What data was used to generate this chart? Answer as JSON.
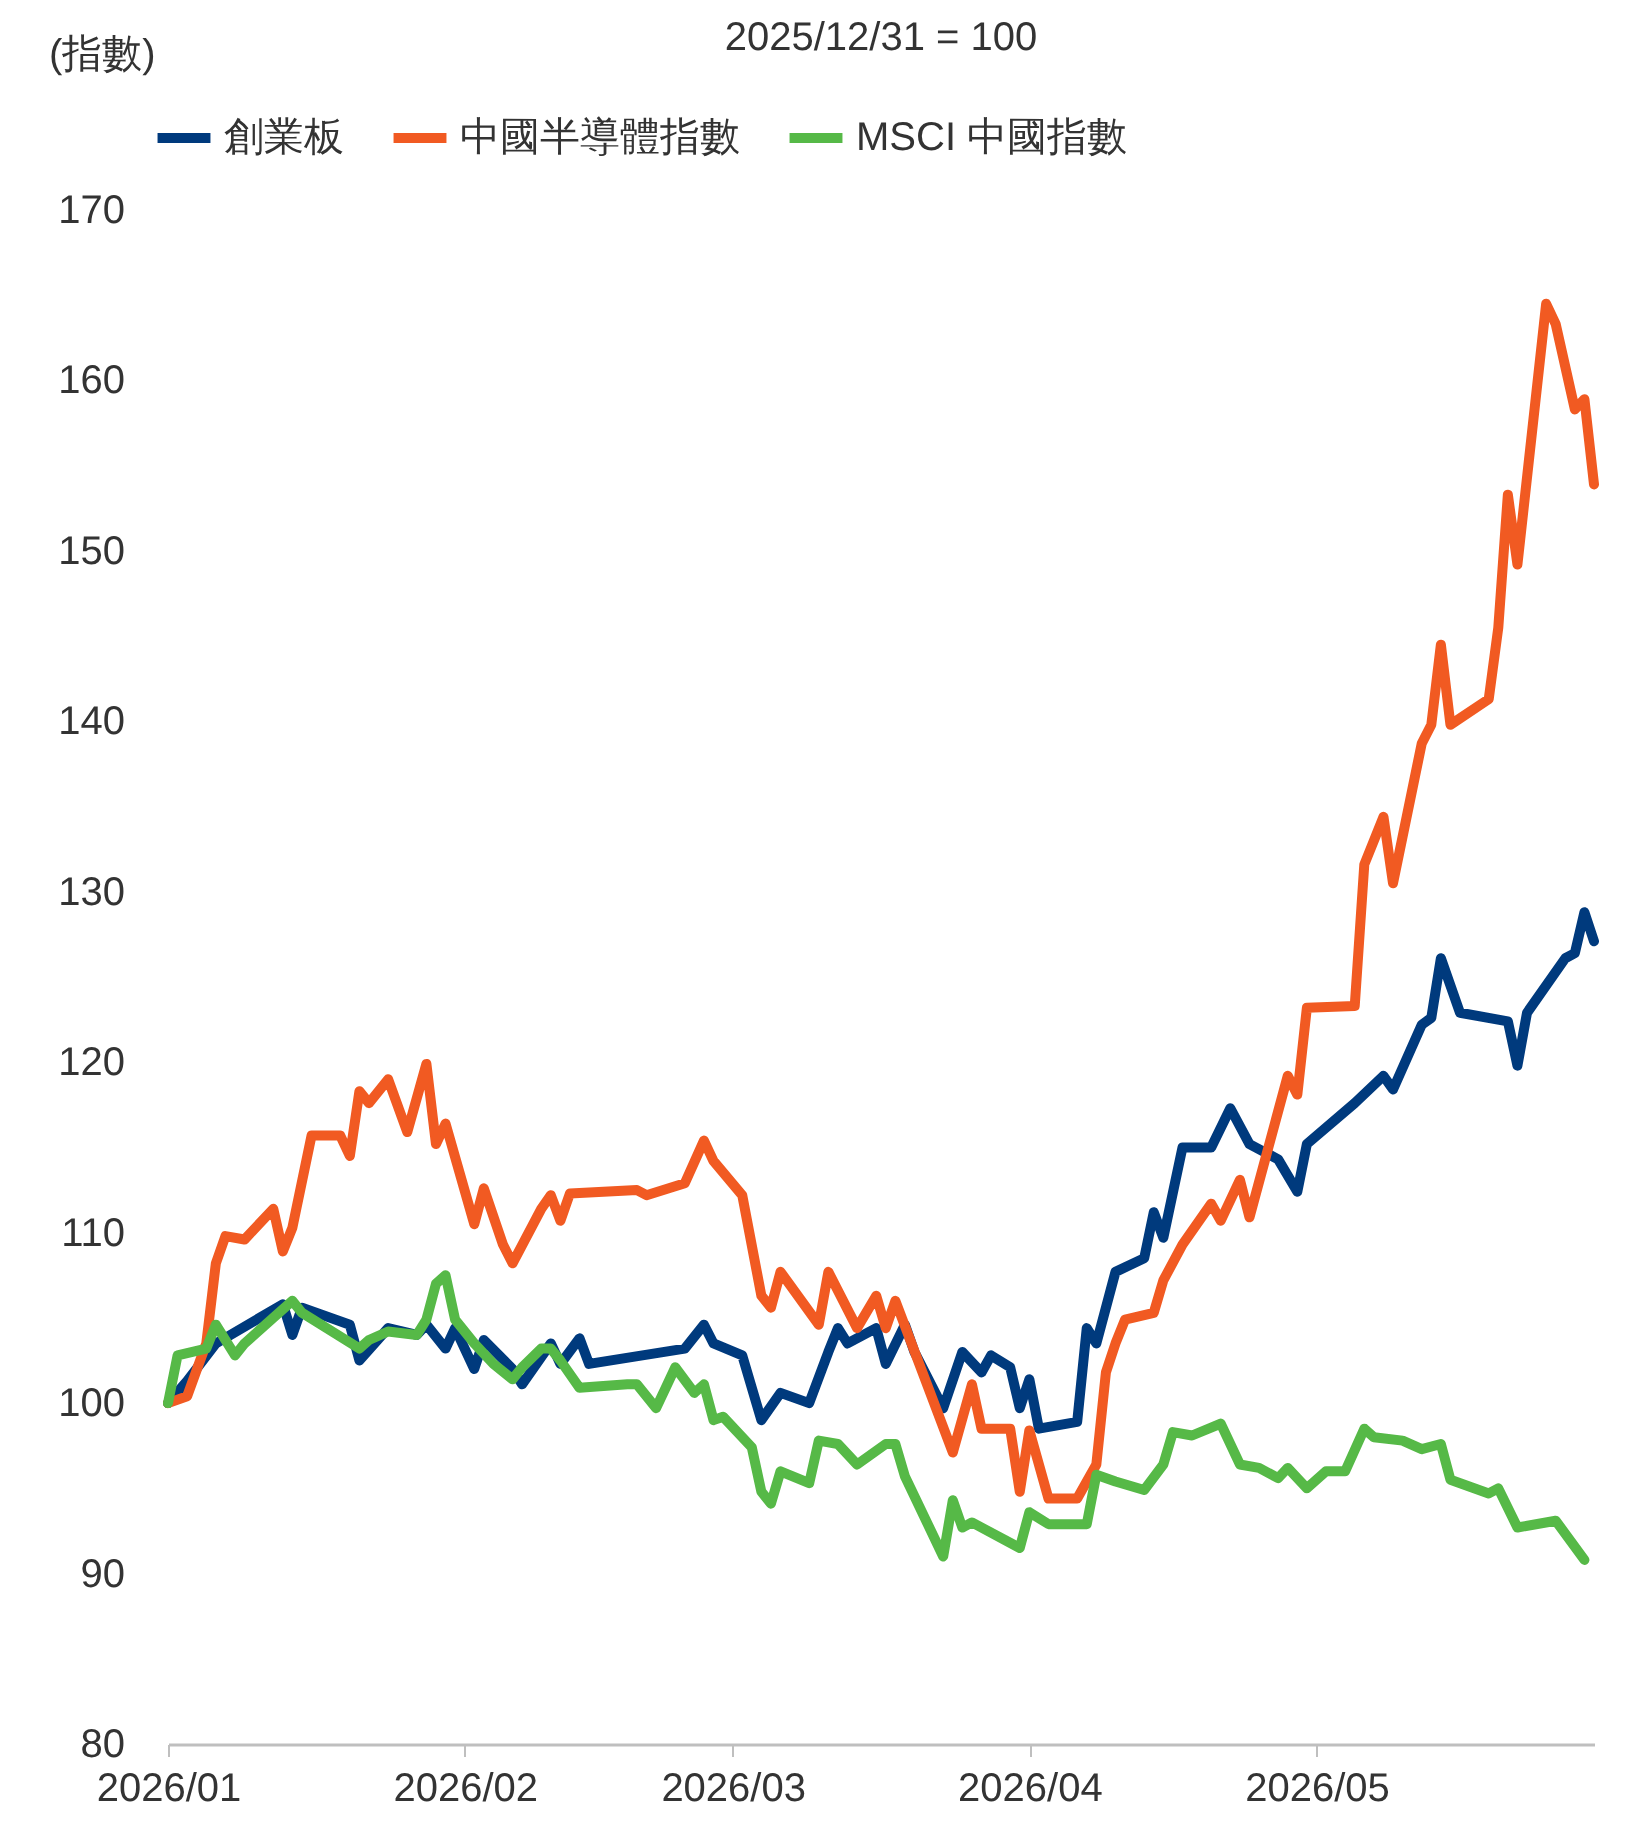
{
  "chart_data": {
    "type": "line",
    "title": "2025/12/31 = 100",
    "ylabel": "(指數)",
    "legend": "top",
    "grid": false,
    "marker": "none",
    "line_style": "solid",
    "xlim": [
      "2026-01-01",
      "2026-05-30"
    ],
    "xticks": [
      {
        "value": "2026-01-01",
        "label": "2026/01"
      },
      {
        "value": "2026-02-01",
        "label": "2026/02"
      },
      {
        "value": "2026-03-01",
        "label": "2026/03"
      },
      {
        "value": "2026-04-01",
        "label": "2026/04"
      },
      {
        "value": "2026-05-01",
        "label": "2026/05"
      }
    ],
    "ylim": [
      80,
      170
    ],
    "yticks": [
      80,
      90,
      100,
      110,
      120,
      130,
      140,
      150,
      160,
      170
    ],
    "series": [
      {
        "name": "創業板",
        "color": "#003a7d",
        "x": [
          "2026-01-01",
          "2026-01-03",
          "2026-01-06",
          "2026-01-13",
          "2026-01-14",
          "2026-01-15",
          "2026-01-20",
          "2026-01-21",
          "2026-01-24",
          "2026-01-27",
          "2026-01-28",
          "2026-01-30",
          "2026-01-31",
          "2026-02-02",
          "2026-02-03",
          "2026-02-06",
          "2026-02-07",
          "2026-02-10",
          "2026-02-11",
          "2026-02-13",
          "2026-02-14",
          "2026-02-24",
          "2026-02-26",
          "2026-02-27",
          "2026-03-02",
          "2026-03-04",
          "2026-03-06",
          "2026-03-09",
          "2026-03-11",
          "2026-03-12",
          "2026-03-13",
          "2026-03-16",
          "2026-03-17",
          "2026-03-19",
          "2026-03-20",
          "2026-03-23",
          "2026-03-25",
          "2026-03-27",
          "2026-03-28",
          "2026-03-30",
          "2026-03-31",
          "2026-04-01",
          "2026-04-02",
          "2026-04-06",
          "2026-04-07",
          "2026-04-08",
          "2026-04-10",
          "2026-04-13",
          "2026-04-14",
          "2026-04-15",
          "2026-04-17",
          "2026-04-20",
          "2026-04-22",
          "2026-04-24",
          "2026-04-27",
          "2026-04-29",
          "2026-04-30",
          "2026-05-05",
          "2026-05-08",
          "2026-05-09",
          "2026-05-12",
          "2026-05-13",
          "2026-05-14",
          "2026-05-16",
          "2026-05-21",
          "2026-05-22",
          "2026-05-23",
          "2026-05-27",
          "2026-05-28",
          "2026-05-29",
          "2026-05-30"
        ],
        "values": [
          100,
          101.3,
          103.5,
          105.8,
          104,
          105.6,
          104.6,
          102.5,
          104.4,
          104,
          104.6,
          103.2,
          104.4,
          102,
          103.7,
          102,
          101.1,
          103.5,
          102.3,
          103.8,
          102.3,
          103.2,
          104.6,
          103.5,
          102.8,
          99,
          100.6,
          100,
          103,
          104.4,
          103.5,
          104.4,
          102.3,
          104.6,
          103,
          99.7,
          103,
          101.8,
          102.8,
          102.1,
          99.7,
          101.4,
          98.5,
          98.9,
          104.4,
          103.5,
          107.7,
          108.5,
          111.2,
          109.7,
          115,
          115,
          117.3,
          115.2,
          114.3,
          112.4,
          115.2,
          117.6,
          119.2,
          118.4,
          122.2,
          122.6,
          126.1,
          122.9,
          122.4,
          119.8,
          122.9,
          126.1,
          126.4,
          128.8,
          127.1
        ]
      },
      {
        "name": "中國半導體指數",
        "color": "#f15a22",
        "x": [
          "2026-01-01",
          "2026-01-03",
          "2026-01-05",
          "2026-01-06",
          "2026-01-07",
          "2026-01-09",
          "2026-01-12",
          "2026-01-13",
          "2026-01-14",
          "2026-01-16",
          "2026-01-19",
          "2026-01-20",
          "2026-01-21",
          "2026-01-22",
          "2026-01-24",
          "2026-01-26",
          "2026-01-28",
          "2026-01-29",
          "2026-01-30",
          "2026-02-02",
          "2026-02-03",
          "2026-02-05",
          "2026-02-06",
          "2026-02-09",
          "2026-02-10",
          "2026-02-11",
          "2026-02-12",
          "2026-02-19",
          "2026-02-20",
          "2026-02-24",
          "2026-02-26",
          "2026-02-27",
          "2026-03-02",
          "2026-03-04",
          "2026-03-05",
          "2026-03-06",
          "2026-03-10",
          "2026-03-11",
          "2026-03-14",
          "2026-03-16",
          "2026-03-17",
          "2026-03-18",
          "2026-03-24",
          "2026-03-26",
          "2026-03-27",
          "2026-03-30",
          "2026-03-31",
          "2026-04-01",
          "2026-04-03",
          "2026-04-06",
          "2026-04-08",
          "2026-04-09",
          "2026-04-10",
          "2026-04-11",
          "2026-04-14",
          "2026-04-15",
          "2026-04-17",
          "2026-04-20",
          "2026-04-21",
          "2026-04-23",
          "2026-04-24",
          "2026-04-28",
          "2026-04-29",
          "2026-04-30",
          "2026-05-05",
          "2026-05-06",
          "2026-05-08",
          "2026-05-09",
          "2026-05-12",
          "2026-05-13",
          "2026-05-14",
          "2026-05-15",
          "2026-05-19",
          "2026-05-20",
          "2026-05-21",
          "2026-05-22",
          "2026-05-25",
          "2026-05-26",
          "2026-05-28",
          "2026-05-29",
          "2026-05-30"
        ],
        "values": [
          100,
          100.4,
          103.5,
          108.2,
          109.8,
          109.6,
          111.4,
          108.9,
          110.3,
          115.7,
          115.7,
          114.5,
          118.3,
          117.6,
          119,
          115.9,
          119.9,
          115.2,
          116.4,
          110.5,
          112.6,
          109.3,
          108.2,
          111.4,
          112.2,
          110.7,
          112.3,
          112.5,
          112.2,
          112.9,
          115.4,
          114.2,
          112.2,
          106.3,
          105.6,
          107.7,
          104.6,
          107.7,
          104.4,
          106.3,
          104.4,
          106,
          97.1,
          101.1,
          98.5,
          98.5,
          94.8,
          98.4,
          94.4,
          94.4,
          96.4,
          101.8,
          103.5,
          104.9,
          105.3,
          107.2,
          109.3,
          111.7,
          110.7,
          113.1,
          110.9,
          119.2,
          118.1,
          123.2,
          123.3,
          131.6,
          134.4,
          130.5,
          138.7,
          139.8,
          144.5,
          139.8,
          141.3,
          145.5,
          153.3,
          149.2,
          164.5,
          163.3,
          158.3,
          158.9,
          153.9
        ]
      },
      {
        "name": "MSCI 中國指數",
        "color": "#56b947",
        "x": [
          "2026-01-01",
          "2026-01-02",
          "2026-01-05",
          "2026-01-06",
          "2026-01-08",
          "2026-01-09",
          "2026-01-14",
          "2026-01-15",
          "2026-01-21",
          "2026-01-22",
          "2026-01-24",
          "2026-01-27",
          "2026-01-28",
          "2026-01-29",
          "2026-01-30",
          "2026-01-31",
          "2026-02-02",
          "2026-02-04",
          "2026-02-06",
          "2026-02-07",
          "2026-02-09",
          "2026-02-10",
          "2026-02-11",
          "2026-02-13",
          "2026-02-18",
          "2026-02-19",
          "2026-02-21",
          "2026-02-22",
          "2026-02-23",
          "2026-02-25",
          "2026-02-26",
          "2026-02-27",
          "2026-02-28",
          "2026-03-03",
          "2026-03-04",
          "2026-03-05",
          "2026-03-06",
          "2026-03-09",
          "2026-03-10",
          "2026-03-12",
          "2026-03-14",
          "2026-03-17",
          "2026-03-18",
          "2026-03-19",
          "2026-03-23",
          "2026-03-24",
          "2026-03-25",
          "2026-03-26",
          "2026-03-31",
          "2026-04-01",
          "2026-04-03",
          "2026-04-07",
          "2026-04-08",
          "2026-04-10",
          "2026-04-13",
          "2026-04-15",
          "2026-04-16",
          "2026-04-18",
          "2026-04-21",
          "2026-04-23",
          "2026-04-25",
          "2026-04-27",
          "2026-04-28",
          "2026-04-30",
          "2026-05-02",
          "2026-05-04",
          "2026-05-06",
          "2026-05-07",
          "2026-05-10",
          "2026-05-12",
          "2026-05-14",
          "2026-05-15",
          "2026-05-19",
          "2026-05-20",
          "2026-05-22",
          "2026-05-26",
          "2026-05-29"
        ],
        "values": [
          100,
          102.8,
          103.2,
          104.6,
          102.8,
          103.5,
          106,
          105.3,
          103.2,
          103.7,
          104.2,
          104,
          104.9,
          107,
          107.5,
          104.9,
          103.5,
          102.3,
          101.4,
          102.1,
          103.2,
          103.2,
          102.5,
          100.9,
          101.1,
          101.1,
          99.7,
          100.9,
          102.1,
          100.6,
          101.1,
          99,
          99.2,
          97.4,
          94.8,
          94.1,
          96,
          95.3,
          97.8,
          97.6,
          96.4,
          97.6,
          97.6,
          95.7,
          91,
          94.3,
          92.7,
          93,
          91.5,
          93.6,
          92.9,
          92.9,
          95.8,
          95.4,
          94.9,
          96.4,
          98.3,
          98.1,
          98.8,
          96.4,
          96.2,
          95.6,
          96.2,
          95,
          96,
          96,
          98.5,
          98,
          97.8,
          97.3,
          97.6,
          95.5,
          94.7,
          95,
          92.7,
          93.1,
          90.8
        ]
      }
    ]
  }
}
